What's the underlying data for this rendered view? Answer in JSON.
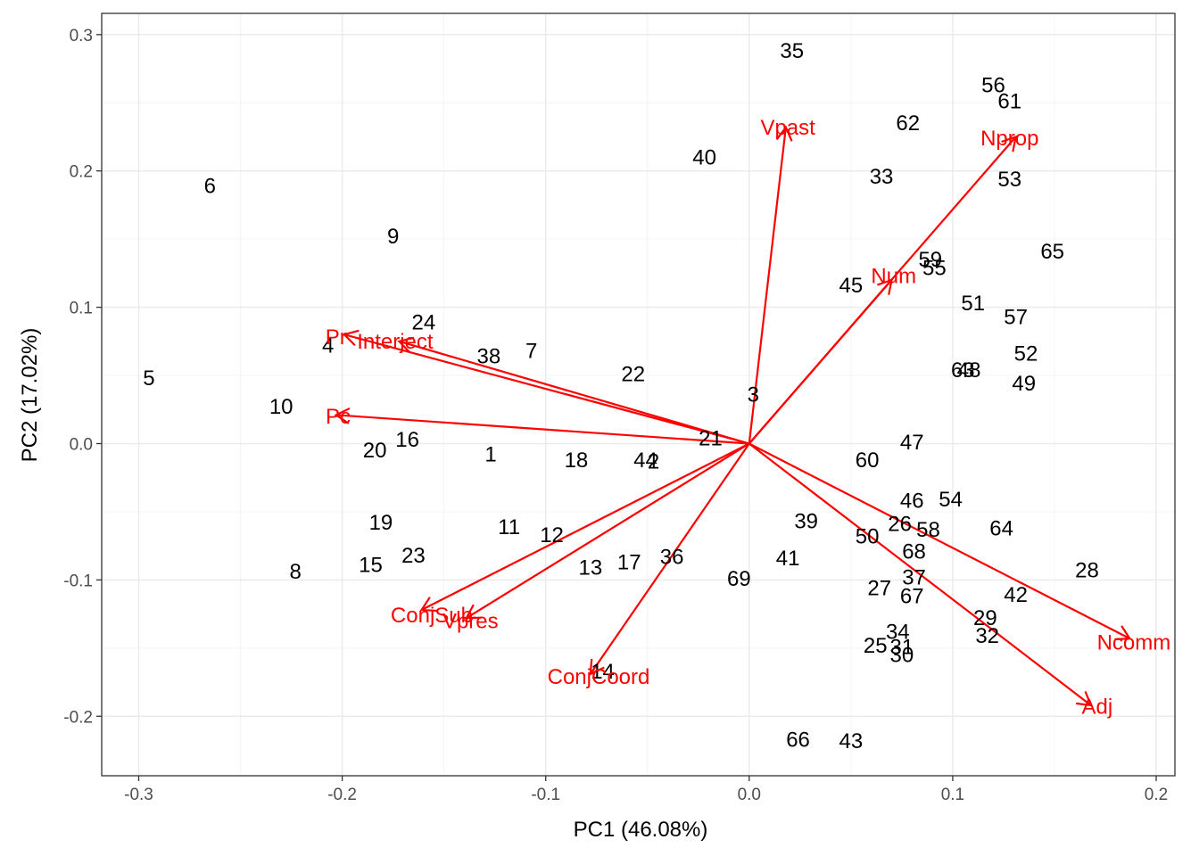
{
  "chart_data": {
    "type": "scatter",
    "subtype": "pca-biplot",
    "xlabel": "PC1 (46.08%)",
    "ylabel": "PC2 (17.02%)",
    "xlim": [
      -0.3,
      0.2
    ],
    "ylim": [
      -0.2,
      0.3
    ],
    "x_ticks": [
      -0.3,
      -0.2,
      -0.1,
      0.0,
      0.1,
      0.2
    ],
    "x_tick_labels": [
      "-0.3",
      "-0.2",
      "-0.1",
      "0.0",
      "0.1",
      "0.2"
    ],
    "y_ticks": [
      -0.2,
      -0.1,
      0.0,
      0.1,
      0.2,
      0.3
    ],
    "y_tick_labels": [
      "-0.2",
      "-0.1",
      "0.0",
      "0.1",
      "0.2",
      "0.3"
    ],
    "grid": true,
    "colors": {
      "points": "#000000",
      "vectors": "#ff0000",
      "grid": "#ebebeb",
      "panel_border": "#333333"
    },
    "points": [
      {
        "label": "1",
        "x": -0.127,
        "y": -0.008
      },
      {
        "label": "2",
        "x": -0.047,
        "y": -0.013
      },
      {
        "label": "3",
        "x": 0.002,
        "y": 0.036
      },
      {
        "label": "4",
        "x": -0.207,
        "y": 0.072
      },
      {
        "label": "5",
        "x": -0.295,
        "y": 0.048
      },
      {
        "label": "6",
        "x": -0.265,
        "y": 0.189
      },
      {
        "label": "7",
        "x": -0.107,
        "y": 0.068
      },
      {
        "label": "8",
        "x": -0.223,
        "y": -0.094
      },
      {
        "label": "9",
        "x": -0.175,
        "y": 0.152
      },
      {
        "label": "10",
        "x": -0.23,
        "y": 0.027
      },
      {
        "label": "11",
        "x": -0.118,
        "y": -0.061
      },
      {
        "label": "12",
        "x": -0.097,
        "y": -0.067
      },
      {
        "label": "13",
        "x": -0.078,
        "y": -0.091
      },
      {
        "label": "14",
        "x": -0.072,
        "y": -0.167
      },
      {
        "label": "15",
        "x": -0.186,
        "y": -0.089
      },
      {
        "label": "16",
        "x": -0.168,
        "y": 0.003
      },
      {
        "label": "17",
        "x": -0.059,
        "y": -0.087
      },
      {
        "label": "18",
        "x": -0.085,
        "y": -0.012
      },
      {
        "label": "19",
        "x": -0.181,
        "y": -0.058
      },
      {
        "label": "20",
        "x": -0.184,
        "y": -0.005
      },
      {
        "label": "21",
        "x": -0.019,
        "y": 0.004
      },
      {
        "label": "22",
        "x": -0.057,
        "y": 0.051
      },
      {
        "label": "23",
        "x": -0.165,
        "y": -0.082
      },
      {
        "label": "24",
        "x": -0.16,
        "y": 0.089
      },
      {
        "label": "25",
        "x": 0.062,
        "y": -0.148
      },
      {
        "label": "26",
        "x": 0.074,
        "y": -0.059
      },
      {
        "label": "27",
        "x": 0.064,
        "y": -0.106
      },
      {
        "label": "28",
        "x": 0.166,
        "y": -0.093
      },
      {
        "label": "29",
        "x": 0.116,
        "y": -0.128
      },
      {
        "label": "30",
        "x": 0.075,
        "y": -0.155
      },
      {
        "label": "31",
        "x": 0.075,
        "y": -0.149
      },
      {
        "label": "32",
        "x": 0.117,
        "y": -0.141
      },
      {
        "label": "33",
        "x": 0.065,
        "y": 0.196
      },
      {
        "label": "34",
        "x": 0.073,
        "y": -0.138
      },
      {
        "label": "35",
        "x": 0.021,
        "y": 0.288
      },
      {
        "label": "36",
        "x": -0.038,
        "y": -0.083
      },
      {
        "label": "37",
        "x": 0.081,
        "y": -0.098
      },
      {
        "label": "38",
        "x": -0.128,
        "y": 0.064
      },
      {
        "label": "39",
        "x": 0.028,
        "y": -0.057
      },
      {
        "label": "40",
        "x": -0.022,
        "y": 0.21
      },
      {
        "label": "41",
        "x": 0.019,
        "y": -0.084
      },
      {
        "label": "42",
        "x": 0.131,
        "y": -0.111
      },
      {
        "label": "43",
        "x": 0.05,
        "y": -0.218
      },
      {
        "label": "44",
        "x": -0.051,
        "y": -0.012
      },
      {
        "label": "45",
        "x": 0.05,
        "y": 0.116
      },
      {
        "label": "46",
        "x": 0.08,
        "y": -0.042
      },
      {
        "label": "47",
        "x": 0.08,
        "y": 0.001
      },
      {
        "label": "48",
        "x": 0.108,
        "y": 0.054
      },
      {
        "label": "49",
        "x": 0.135,
        "y": 0.044
      },
      {
        "label": "50",
        "x": 0.058,
        "y": -0.068
      },
      {
        "label": "51",
        "x": 0.11,
        "y": 0.103
      },
      {
        "label": "52",
        "x": 0.136,
        "y": 0.066
      },
      {
        "label": "53",
        "x": 0.128,
        "y": 0.194
      },
      {
        "label": "54",
        "x": 0.099,
        "y": -0.041
      },
      {
        "label": "55",
        "x": 0.091,
        "y": 0.129
      },
      {
        "label": "56",
        "x": 0.12,
        "y": 0.263
      },
      {
        "label": "57",
        "x": 0.131,
        "y": 0.093
      },
      {
        "label": "58",
        "x": 0.088,
        "y": -0.063
      },
      {
        "label": "59",
        "x": 0.089,
        "y": 0.135
      },
      {
        "label": "60",
        "x": 0.058,
        "y": -0.012
      },
      {
        "label": "61",
        "x": 0.128,
        "y": 0.251
      },
      {
        "label": "62",
        "x": 0.078,
        "y": 0.235
      },
      {
        "label": "63",
        "x": 0.105,
        "y": 0.054
      },
      {
        "label": "64",
        "x": 0.124,
        "y": -0.062
      },
      {
        "label": "65",
        "x": 0.149,
        "y": 0.141
      },
      {
        "label": "66",
        "x": 0.024,
        "y": -0.217
      },
      {
        "label": "67",
        "x": 0.08,
        "y": -0.112
      },
      {
        "label": "68",
        "x": 0.081,
        "y": -0.079
      },
      {
        "label": "69",
        "x": -0.005,
        "y": -0.099
      }
    ],
    "vectors": [
      {
        "label": "Vpast",
        "x": 0.018,
        "y": 0.232
      },
      {
        "label": "Nprop",
        "x": 0.131,
        "y": 0.225
      },
      {
        "label": "Num",
        "x": 0.07,
        "y": 0.12
      },
      {
        "label": "Pr",
        "x": -0.199,
        "y": 0.08
      },
      {
        "label": "Interject",
        "x": -0.172,
        "y": 0.075
      },
      {
        "label": "Pc",
        "x": -0.203,
        "y": 0.021
      },
      {
        "label": "ConjSub",
        "x": -0.161,
        "y": -0.122
      },
      {
        "label": "Vpres",
        "x": -0.139,
        "y": -0.128
      },
      {
        "label": "ConjCoord",
        "x": -0.078,
        "y": -0.169
      },
      {
        "label": "Ncomm",
        "x": 0.187,
        "y": -0.143
      },
      {
        "label": "Adj",
        "x": 0.168,
        "y": -0.192
      }
    ],
    "vector_label_positions": [
      {
        "label": "Vpast",
        "x": 0.019,
        "y": 0.232
      },
      {
        "label": "Nprop",
        "x": 0.128,
        "y": 0.224
      },
      {
        "label": "Num",
        "x": 0.071,
        "y": 0.123
      },
      {
        "label": "Pr",
        "x": -0.203,
        "y": 0.078
      },
      {
        "label": "Interject",
        "x": -0.174,
        "y": 0.075
      },
      {
        "label": "Pc",
        "x": -0.202,
        "y": 0.02
      },
      {
        "label": "ConjSub",
        "x": -0.156,
        "y": -0.126
      },
      {
        "label": "Vpres",
        "x": -0.137,
        "y": -0.13
      },
      {
        "label": "ConjCoord",
        "x": -0.074,
        "y": -0.171
      },
      {
        "label": "Ncomm",
        "x": 0.189,
        "y": -0.146
      },
      {
        "label": "Adj",
        "x": 0.171,
        "y": -0.193
      }
    ]
  }
}
